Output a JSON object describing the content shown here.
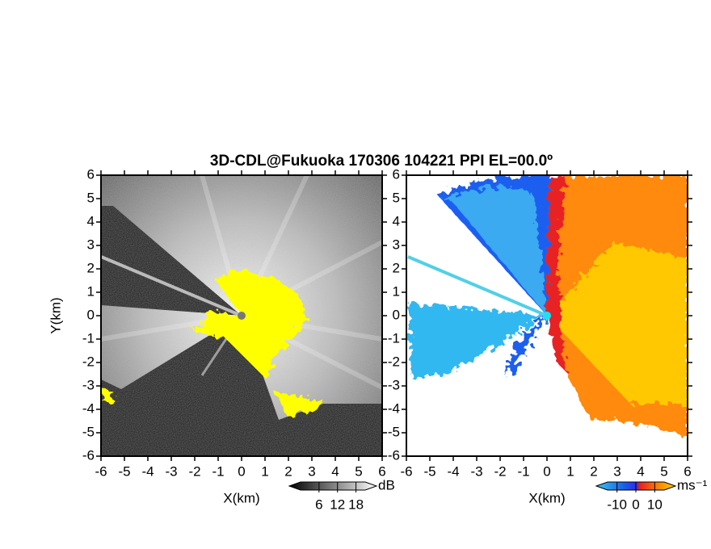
{
  "chart_data": [
    {
      "type": "ppi",
      "title": "3D-CDL@Fukuoka 170306 104221 PPI EL=00.0º",
      "xlabel": "X(km)",
      "ylabel": "Y(km)",
      "xlim": [
        -6,
        6
      ],
      "ylim": [
        -6,
        6
      ],
      "xticks": [
        -6,
        -5,
        -4,
        -3,
        -2,
        -1,
        0,
        1,
        2,
        3,
        4,
        5,
        6
      ],
      "yticks": [
        -6,
        -5,
        -4,
        -3,
        -2,
        -1,
        0,
        1,
        2,
        3,
        4,
        5,
        6
      ],
      "colorbar": {
        "label": "dB",
        "clim": [
          0,
          21
        ],
        "ticks": [
          6,
          12,
          18
        ]
      }
    },
    {
      "type": "ppi",
      "xlabel": "X(km)",
      "xlim": [
        -6,
        6
      ],
      "ylim": [
        -6,
        6
      ],
      "xticks": [
        -6,
        -5,
        -4,
        -3,
        -2,
        -1,
        0,
        1,
        2,
        3,
        4,
        5,
        6
      ],
      "yticks": [
        -6,
        -5,
        -4,
        -3,
        -2,
        -1,
        0,
        1,
        2,
        3,
        4,
        5,
        6
      ],
      "colorbar": {
        "label": "ms⁻¹",
        "clim": [
          -15,
          15
        ],
        "ticks": [
          -10,
          0,
          10
        ]
      }
    }
  ]
}
